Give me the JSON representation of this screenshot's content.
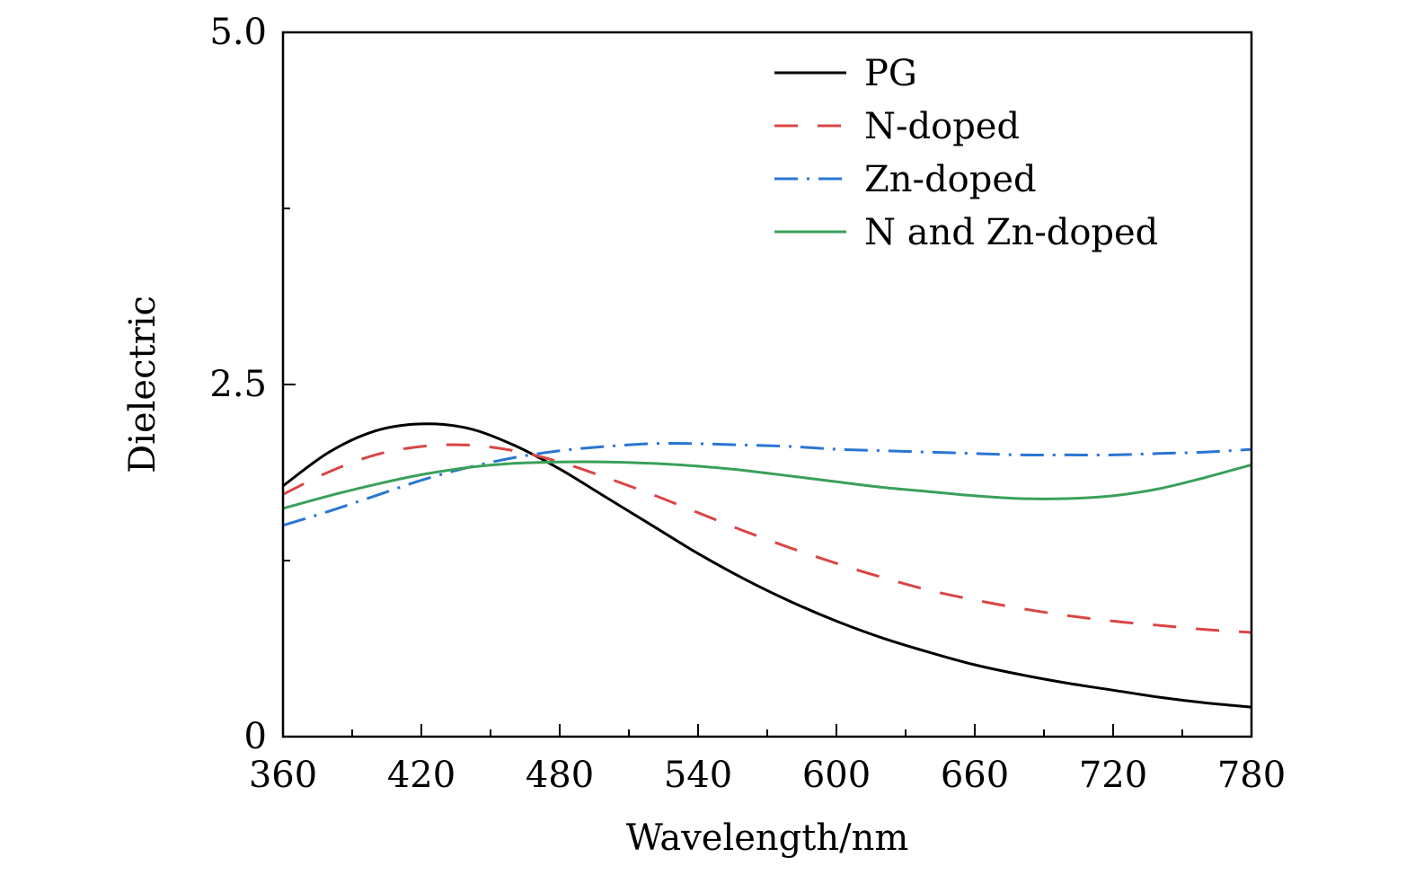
{
  "chart_data": {
    "type": "line",
    "title": "",
    "xlabel": "Wavelength/nm",
    "ylabel": "Dielectric",
    "xlim": [
      360,
      780
    ],
    "ylim": [
      0,
      5.0
    ],
    "x_ticks": [
      360,
      420,
      480,
      540,
      600,
      660,
      720,
      780
    ],
    "x_tick_labels": [
      "360",
      "420",
      "480",
      "540",
      "600",
      "660",
      "720",
      "780"
    ],
    "y_ticks": [
      0,
      2.5,
      5.0
    ],
    "y_tick_labels": [
      "0",
      "2.5",
      "5.0"
    ],
    "legend_position": "top-right",
    "grid": false,
    "series": [
      {
        "name": "PG",
        "color": "#000000",
        "dash": "solid",
        "x": [
          360,
          380,
          400,
          420,
          440,
          460,
          480,
          500,
          520,
          540,
          560,
          580,
          600,
          620,
          640,
          660,
          680,
          700,
          720,
          740,
          760,
          780
        ],
        "y": [
          1.78,
          2.02,
          2.17,
          2.22,
          2.19,
          2.07,
          1.9,
          1.7,
          1.5,
          1.3,
          1.12,
          0.96,
          0.82,
          0.7,
          0.6,
          0.51,
          0.44,
          0.38,
          0.33,
          0.28,
          0.24,
          0.21
        ]
      },
      {
        "name": "N-doped",
        "color": "#d94545",
        "dash": "dashed",
        "x": [
          360,
          380,
          400,
          420,
          440,
          460,
          480,
          500,
          520,
          540,
          560,
          580,
          600,
          620,
          640,
          660,
          680,
          700,
          720,
          740,
          760,
          780
        ],
        "y": [
          1.72,
          1.88,
          2.0,
          2.06,
          2.07,
          2.03,
          1.95,
          1.84,
          1.72,
          1.59,
          1.46,
          1.34,
          1.23,
          1.13,
          1.04,
          0.97,
          0.91,
          0.86,
          0.82,
          0.79,
          0.76,
          0.74
        ]
      },
      {
        "name": "Zn-doped",
        "color": "#2a75d3",
        "dash": "dashdot",
        "x": [
          360,
          380,
          400,
          420,
          440,
          460,
          480,
          500,
          520,
          540,
          560,
          580,
          600,
          620,
          640,
          660,
          680,
          700,
          720,
          740,
          760,
          780
        ],
        "y": [
          1.5,
          1.6,
          1.71,
          1.82,
          1.91,
          1.98,
          2.03,
          2.06,
          2.08,
          2.08,
          2.07,
          2.06,
          2.04,
          2.03,
          2.02,
          2.01,
          2.0,
          2.0,
          2.0,
          2.01,
          2.02,
          2.04
        ]
      },
      {
        "name": "N and Zn-doped",
        "color": "#3aa05a",
        "dash": "solid",
        "x": [
          360,
          380,
          400,
          420,
          440,
          460,
          480,
          500,
          520,
          540,
          560,
          580,
          600,
          620,
          640,
          660,
          680,
          700,
          720,
          740,
          760,
          780
        ],
        "y": [
          1.62,
          1.71,
          1.79,
          1.86,
          1.91,
          1.94,
          1.95,
          1.95,
          1.94,
          1.92,
          1.89,
          1.85,
          1.81,
          1.77,
          1.74,
          1.71,
          1.69,
          1.69,
          1.71,
          1.76,
          1.84,
          1.93
        ]
      }
    ]
  }
}
